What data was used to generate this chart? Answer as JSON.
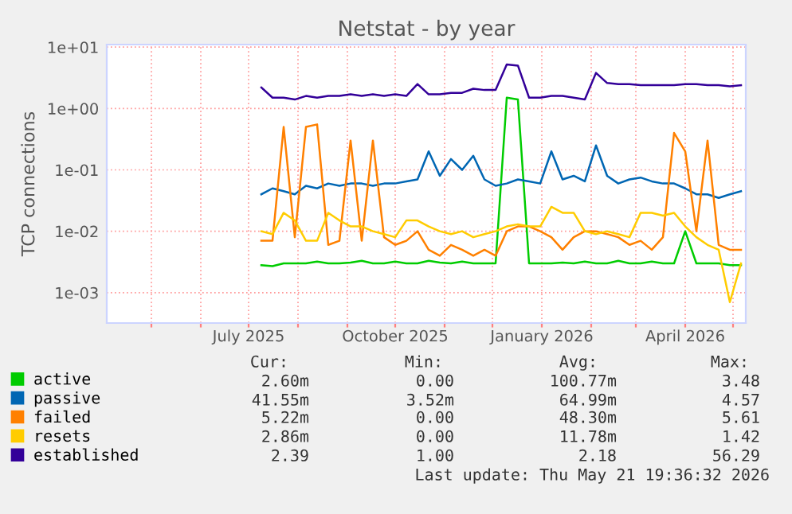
{
  "chart_data": {
    "type": "line",
    "title": "Netstat - by year",
    "ylabel": "TCP connections",
    "x": [
      "2025-07-09",
      "2025-07-16",
      "2025-07-23",
      "2025-07-30",
      "2025-08-06",
      "2025-08-13",
      "2025-08-20",
      "2025-08-27",
      "2025-09-03",
      "2025-09-10",
      "2025-09-17",
      "2025-09-24",
      "2025-10-01",
      "2025-10-08",
      "2025-10-15",
      "2025-10-22",
      "2025-10-29",
      "2025-11-05",
      "2025-11-12",
      "2025-11-19",
      "2025-11-26",
      "2025-12-03",
      "2025-12-10",
      "2025-12-17",
      "2025-12-24",
      "2025-12-31",
      "2026-01-07",
      "2026-01-14",
      "2026-01-21",
      "2026-01-28",
      "2026-02-04",
      "2026-02-11",
      "2026-02-18",
      "2026-02-25",
      "2026-03-04",
      "2026-03-11",
      "2026-03-18",
      "2026-03-25",
      "2026-04-01",
      "2026-04-08",
      "2026-04-15",
      "2026-04-22",
      "2026-04-29",
      "2026-05-06"
    ],
    "series": [
      {
        "name": "active",
        "color": "#00cc00",
        "values": [
          0.0028,
          0.0027,
          0.003,
          0.003,
          0.003,
          0.0032,
          0.003,
          0.003,
          0.0031,
          0.0033,
          0.003,
          0.003,
          0.0032,
          0.003,
          0.003,
          0.0033,
          0.0031,
          0.003,
          0.0032,
          0.003,
          0.003,
          0.003,
          1.5,
          1.4,
          0.003,
          0.003,
          0.003,
          0.0031,
          0.003,
          0.0032,
          0.003,
          0.003,
          0.0033,
          0.003,
          0.003,
          0.0032,
          0.003,
          0.003,
          0.01,
          0.003,
          0.003,
          0.003,
          0.0028,
          0.0028
        ]
      },
      {
        "name": "passive",
        "color": "#0066b3",
        "values": [
          0.04,
          0.05,
          0.045,
          0.04,
          0.055,
          0.05,
          0.06,
          0.055,
          0.06,
          0.06,
          0.055,
          0.06,
          0.06,
          0.065,
          0.07,
          0.2,
          0.08,
          0.15,
          0.1,
          0.17,
          0.07,
          0.055,
          0.06,
          0.07,
          0.065,
          0.06,
          0.2,
          0.07,
          0.08,
          0.065,
          0.25,
          0.08,
          0.06,
          0.07,
          0.075,
          0.065,
          0.06,
          0.06,
          0.05,
          0.04,
          0.04,
          0.035,
          0.04,
          0.045
        ]
      },
      {
        "name": "failed",
        "color": "#ff8000",
        "values": [
          0.007,
          0.007,
          0.5,
          0.008,
          0.5,
          0.55,
          0.006,
          0.007,
          0.3,
          0.007,
          0.3,
          0.008,
          0.006,
          0.007,
          0.01,
          0.005,
          0.004,
          0.006,
          0.005,
          0.004,
          0.005,
          0.004,
          0.01,
          0.012,
          0.012,
          0.01,
          0.008,
          0.005,
          0.008,
          0.01,
          0.01,
          0.009,
          0.008,
          0.006,
          0.007,
          0.005,
          0.008,
          0.4,
          0.2,
          0.01,
          0.3,
          0.006,
          0.005,
          0.005
        ]
      },
      {
        "name": "resets",
        "color": "#ffcc00",
        "values": [
          0.01,
          0.009,
          0.02,
          0.015,
          0.007,
          0.007,
          0.02,
          0.015,
          0.012,
          0.012,
          0.01,
          0.009,
          0.008,
          0.015,
          0.015,
          0.012,
          0.01,
          0.009,
          0.01,
          0.008,
          0.009,
          0.01,
          0.012,
          0.013,
          0.012,
          0.012,
          0.025,
          0.02,
          0.02,
          0.01,
          0.009,
          0.01,
          0.009,
          0.008,
          0.02,
          0.02,
          0.018,
          0.02,
          0.012,
          0.008,
          0.006,
          0.005,
          0.0007,
          0.003
        ]
      },
      {
        "name": "established",
        "color": "#330099",
        "values": [
          2.2,
          1.5,
          1.5,
          1.4,
          1.6,
          1.5,
          1.6,
          1.6,
          1.7,
          1.6,
          1.7,
          1.6,
          1.7,
          1.6,
          2.5,
          1.7,
          1.7,
          1.8,
          1.8,
          2.1,
          2.0,
          2.0,
          5.2,
          5.0,
          1.5,
          1.5,
          1.6,
          1.6,
          1.5,
          1.4,
          3.8,
          2.6,
          2.5,
          2.5,
          2.4,
          2.4,
          2.4,
          2.4,
          2.5,
          2.5,
          2.4,
          2.4,
          2.3,
          2.4
        ]
      }
    ],
    "log": "y",
    "ylim": [
      0.00032,
      11
    ],
    "yticks": [
      {
        "value": 10,
        "label": "1e+01"
      },
      {
        "value": 1,
        "label": "1e+00"
      },
      {
        "value": 0.1,
        "label": "1e-01"
      },
      {
        "value": 0.01,
        "label": "1e-02"
      },
      {
        "value": 0.001,
        "label": "1e-03"
      }
    ],
    "xlim": [
      "2025-04-03",
      "2026-05-09"
    ],
    "xticks": [
      {
        "value": "2025-05-01",
        "label": null
      },
      {
        "value": "2025-06-01",
        "label": null
      },
      {
        "value": "2025-07-01",
        "label": "July 2025"
      },
      {
        "value": "2025-08-01",
        "label": null
      },
      {
        "value": "2025-09-01",
        "label": null
      },
      {
        "value": "2025-10-01",
        "label": "October 2025"
      },
      {
        "value": "2025-11-01",
        "label": null
      },
      {
        "value": "2025-12-01",
        "label": null
      },
      {
        "value": "2026-01-01",
        "label": "January 2026"
      },
      {
        "value": "2026-02-01",
        "label": null
      },
      {
        "value": "2026-03-01",
        "label": null
      },
      {
        "value": "2026-04-01",
        "label": "April 2026"
      },
      {
        "value": "2026-05-01",
        "label": null
      }
    ],
    "grid": true,
    "legend": "bottom",
    "marker": "none",
    "line_style": "solid",
    "annotations": [
      "Cur:",
      "Min:",
      "Avg:",
      "Max:",
      "2.60m",
      "0.00",
      "100.77m",
      "3.48",
      "41.55m",
      "3.52m",
      "64.99m",
      "4.57",
      "5.22m",
      "0.00",
      "48.30m",
      "5.61",
      "2.86m",
      "0.00",
      "11.78m",
      "1.42",
      "2.39",
      "1.00",
      "2.18",
      "56.29",
      "Last update: Thu May 21 19:36:32 2026"
    ]
  }
}
